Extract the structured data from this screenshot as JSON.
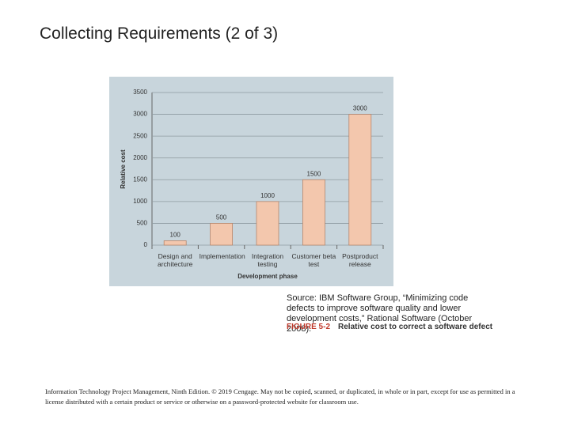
{
  "slide": {
    "title": "Collecting Requirements (2 of 3)",
    "footer": "Information Technology Project Management, Ninth Edition. © 2019 Cengage. May not be copied, scanned, or duplicated, in whole or in part, except for use as permitted in a license distributed with a certain product or service or otherwise on a password-protected website for classroom use."
  },
  "figure": {
    "source": "Source: IBM Software Group, “Minimizing code defects to improve software quality and lower development costs,” Rational Software (October 2008).",
    "number": "FIGURE 5-2",
    "caption": "Relative cost to correct a software defect"
  },
  "chart_data": {
    "type": "bar",
    "y_label": "Relative cost",
    "x_label": "Development phase",
    "categories": [
      "Design and architecture",
      "Implementation",
      "Integration testing",
      "Customer beta test",
      "Postproduct release"
    ],
    "values": [
      100,
      500,
      1000,
      1500,
      3000
    ],
    "color": "#f3c7ad",
    "ylim": [
      0,
      3500
    ],
    "yticks": [
      0,
      500,
      1000,
      1500,
      2000,
      2500,
      3000,
      3500
    ],
    "grid": true
  }
}
